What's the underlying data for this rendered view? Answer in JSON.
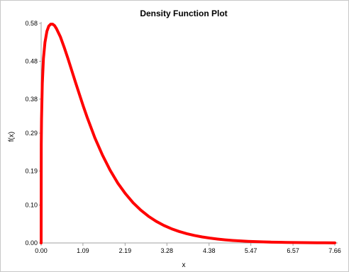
{
  "chart_data": {
    "type": "line",
    "title": "Density Function Plot",
    "xlabel": "x",
    "ylabel": "f(x)",
    "xlim": [
      0,
      7.66
    ],
    "ylim": [
      0,
      0.58
    ],
    "x_ticks": [
      "0.00",
      "1.09",
      "2.19",
      "3.28",
      "4.38",
      "5.47",
      "6.57",
      "7.66"
    ],
    "y_ticks": [
      "0.00",
      "0.10",
      "0.19",
      "0.29",
      "0.38",
      "0.48",
      "0.58"
    ],
    "grid": false,
    "legend": "none",
    "series": [
      {
        "color": "#ff0000",
        "x": [
          0.0,
          0.003,
          0.01,
          0.03,
          0.06,
          0.1,
          0.15,
          0.2,
          0.25,
          0.3,
          0.35,
          0.4,
          0.5,
          0.6,
          0.7,
          0.8,
          0.9,
          1.0,
          1.1,
          1.2,
          1.4,
          1.6,
          1.8,
          2.0,
          2.2,
          2.4,
          2.6,
          2.8,
          3.0,
          3.2,
          3.4,
          3.6,
          3.8,
          4.0,
          4.2,
          4.4,
          4.6,
          4.8,
          5.0,
          5.2,
          5.4,
          5.6,
          5.8,
          6.0,
          6.2,
          6.4,
          6.6,
          6.8,
          7.0,
          7.2,
          7.4,
          7.66
        ],
        "y": [
          0.0,
          0.26,
          0.327,
          0.42,
          0.487,
          0.53,
          0.559,
          0.573,
          0.578,
          0.578,
          0.574,
          0.566,
          0.545,
          0.517,
          0.487,
          0.455,
          0.423,
          0.392,
          0.361,
          0.332,
          0.278,
          0.232,
          0.192,
          0.158,
          0.13,
          0.106,
          0.0866,
          0.0704,
          0.0572,
          0.0463,
          0.0375,
          0.0303,
          0.0245,
          0.0197,
          0.0159,
          0.0128,
          0.0103,
          0.00826,
          0.00664,
          0.00533,
          0.00428,
          0.00343,
          0.00275,
          0.0022,
          0.00177,
          0.00141,
          0.00113,
          0.000906,
          0.000725,
          0.00058,
          0.000464,
          0.000344
        ]
      }
    ]
  }
}
